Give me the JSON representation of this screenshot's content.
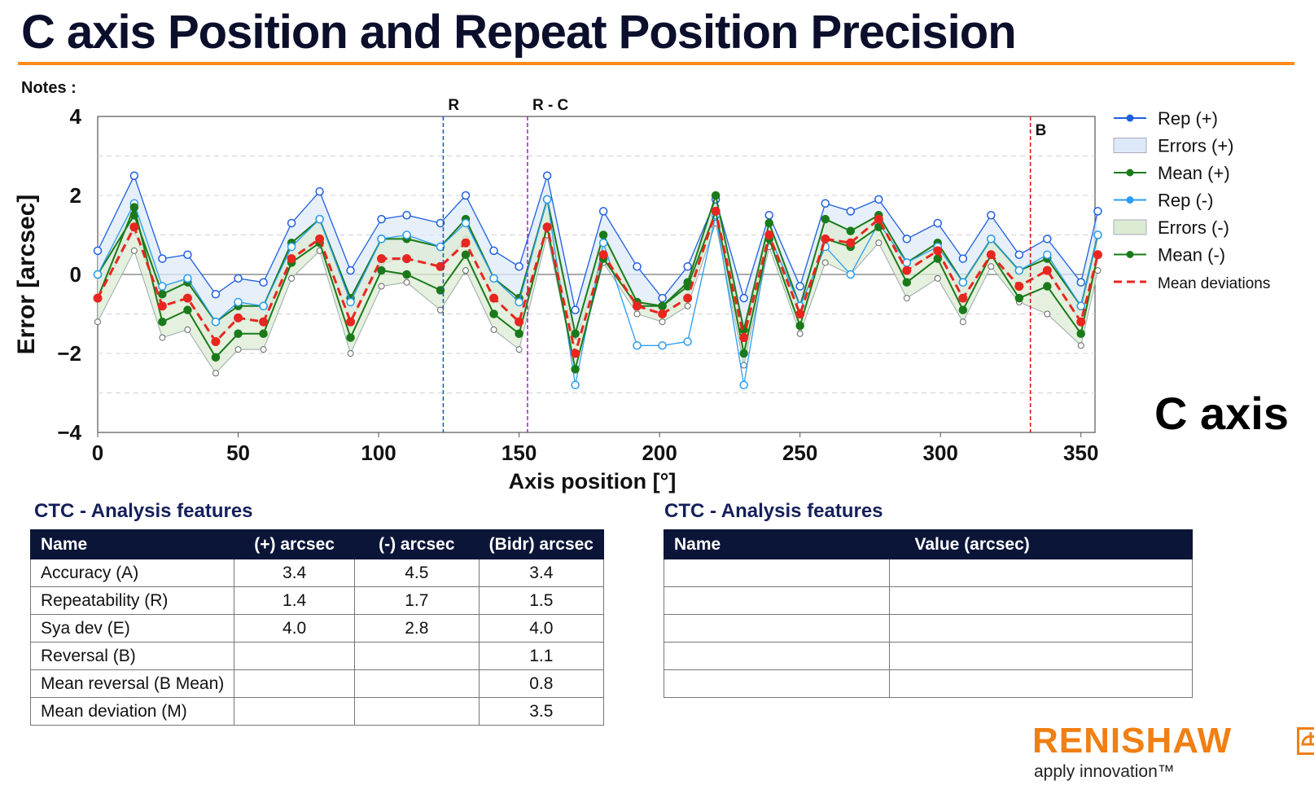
{
  "page": {
    "title": "C axis Position and Repeat Position Precision",
    "notes_label": "Notes :",
    "axis_caption": "C axis"
  },
  "colors": {
    "accent_rule": "#ff8a1c",
    "header_bg": "#0b1538",
    "brand_orange": "#f07f14",
    "rep_plus": "#1f5fe0",
    "rep_minus": "#2a9df4",
    "mean": "#1a7a1a",
    "errors_plus_fill": "#dde9f8",
    "errors_minus_fill": "#dcebd4",
    "mean_dev": "#e8261f"
  },
  "chart_data": {
    "type": "line",
    "xlabel": "Axis position [°]",
    "ylabel": "Error [arcsec]",
    "xlim": [
      0,
      355
    ],
    "ylim": [
      -4,
      4
    ],
    "xticks": [
      0,
      50,
      100,
      150,
      200,
      250,
      300,
      350
    ],
    "yticks": [
      4,
      2,
      0,
      -2,
      -4
    ],
    "grid": "horizontal dashed",
    "legend_position": "right",
    "x": [
      0,
      13,
      23,
      32,
      42,
      50,
      59,
      69,
      79,
      90,
      101,
      110,
      122,
      131,
      141,
      150,
      160,
      170,
      180,
      192,
      201,
      210,
      220,
      230,
      239,
      250,
      259,
      268,
      278,
      288,
      299,
      308,
      318,
      328,
      338,
      350,
      356
    ],
    "vertical_markers": [
      {
        "label": "R",
        "x": 123,
        "color": "#1f4fd0"
      },
      {
        "label": "R - C",
        "x": 153,
        "color": "#a020c0"
      },
      {
        "label": "B",
        "x": 332,
        "color": "#d81010"
      }
    ],
    "series": [
      {
        "name": "Rep (+)",
        "kind": "line",
        "color": "#1f5fe0",
        "values": [
          0.6,
          2.5,
          0.4,
          0.5,
          -0.5,
          -0.1,
          -0.2,
          1.3,
          2.1,
          0.1,
          1.4,
          1.5,
          1.3,
          2.0,
          0.6,
          0.2,
          2.5,
          -0.9,
          1.6,
          0.2,
          -0.6,
          0.2,
          1.9,
          -0.6,
          1.5,
          -0.3,
          1.8,
          1.6,
          1.9,
          0.9,
          1.3,
          0.4,
          1.5,
          0.5,
          0.9,
          -0.2,
          1.6
        ]
      },
      {
        "name": "Errors (+)",
        "kind": "band",
        "color": "#dde9f8",
        "upper": [
          0.6,
          2.5,
          0.4,
          0.5,
          -0.5,
          -0.1,
          -0.2,
          1.3,
          2.1,
          0.1,
          1.4,
          1.5,
          1.3,
          2.0,
          0.6,
          0.2,
          2.5,
          -0.9,
          1.6,
          0.2,
          -0.6,
          0.2,
          1.9,
          -0.6,
          1.5,
          -0.3,
          1.8,
          1.6,
          1.9,
          0.9,
          1.3,
          0.4,
          1.5,
          0.5,
          0.9,
          -0.2,
          1.6
        ],
        "lower": [
          -0.6,
          1.1,
          -0.8,
          -0.6,
          -1.7,
          -1.1,
          -1.2,
          0.4,
          0.9,
          -1.2,
          0.3,
          0.4,
          0.2,
          0.9,
          -0.6,
          -1.2,
          1.2,
          -1.7,
          0.5,
          -0.8,
          -1.0,
          -0.6,
          1.5,
          -1.6,
          1.0,
          -1.0,
          0.9,
          0.8,
          1.4,
          0.1,
          0.6,
          -0.6,
          0.5,
          -0.3,
          0.1,
          -1.2,
          0.5
        ]
      },
      {
        "name": "Mean (+)",
        "kind": "line",
        "color": "#1a7a1a",
        "values": [
          0.0,
          1.5,
          -0.5,
          -0.2,
          -1.2,
          -0.8,
          -0.8,
          0.8,
          1.4,
          -0.6,
          0.9,
          0.9,
          0.7,
          1.4,
          -0.1,
          -0.6,
          1.9,
          -1.5,
          1.0,
          -0.7,
          -0.8,
          -0.2,
          2.0,
          -1.4,
          1.3,
          -0.8,
          1.4,
          1.1,
          1.5,
          0.3,
          0.8,
          -0.2,
          0.9,
          0.1,
          0.4,
          -0.8,
          1.0
        ]
      },
      {
        "name": "Rep (-)",
        "kind": "line",
        "color": "#2a9df4",
        "values": [
          0.0,
          1.8,
          -0.3,
          -0.1,
          -1.2,
          -0.7,
          -0.8,
          0.7,
          1.4,
          -0.7,
          0.9,
          1.0,
          0.7,
          1.3,
          -0.1,
          -0.7,
          1.9,
          -2.8,
          0.8,
          -1.8,
          -1.8,
          -1.7,
          1.5,
          -2.8,
          1.0,
          -0.8,
          0.7,
          0.0,
          1.3,
          0.3,
          0.7,
          -0.2,
          0.9,
          0.1,
          0.5,
          -0.8,
          1.0
        ]
      },
      {
        "name": "Errors (-)",
        "kind": "band",
        "color": "#dcebd4",
        "upper": [
          0.0,
          1.8,
          -0.3,
          -0.1,
          -1.2,
          -0.7,
          -0.8,
          0.7,
          1.4,
          -0.7,
          0.9,
          1.0,
          0.7,
          1.3,
          -0.1,
          -0.7,
          1.9,
          -1.7,
          1.0,
          -0.6,
          -0.8,
          -0.2,
          2.0,
          -1.3,
          1.3,
          -0.8,
          1.4,
          1.1,
          1.5,
          0.3,
          0.8,
          -0.2,
          0.9,
          0.1,
          0.5,
          -0.8,
          1.0
        ],
        "lower": [
          -1.2,
          0.6,
          -1.6,
          -1.4,
          -2.5,
          -1.9,
          -1.9,
          -0.1,
          0.6,
          -2.0,
          -0.3,
          -0.2,
          -0.9,
          0.1,
          -1.4,
          -1.9,
          1.0,
          -2.4,
          0.3,
          -1.0,
          -1.2,
          -0.8,
          1.3,
          -2.3,
          0.7,
          -1.5,
          0.3,
          0.0,
          0.8,
          -0.6,
          -0.1,
          -1.2,
          0.2,
          -0.7,
          -1.0,
          -1.8,
          0.1
        ]
      },
      {
        "name": "Mean (-)",
        "kind": "line",
        "color": "#1a7a1a",
        "values": [
          -0.6,
          1.7,
          -1.2,
          -0.9,
          -2.1,
          -1.5,
          -1.5,
          0.3,
          0.8,
          -1.6,
          0.1,
          0.0,
          -0.4,
          0.5,
          -1.0,
          -1.5,
          1.2,
          -2.4,
          0.4,
          -0.8,
          -0.8,
          -0.3,
          1.6,
          -2.0,
          0.9,
          -1.3,
          0.9,
          0.7,
          1.2,
          -0.2,
          0.4,
          -0.9,
          0.5,
          -0.6,
          -0.3,
          -1.5,
          0.5
        ]
      },
      {
        "name": "Mean deviations",
        "kind": "dashed",
        "color": "#e8261f",
        "values": [
          -0.6,
          1.2,
          -0.8,
          -0.6,
          -1.7,
          -1.1,
          -1.2,
          0.4,
          0.9,
          -1.2,
          0.4,
          0.4,
          0.2,
          0.8,
          -0.6,
          -1.2,
          1.2,
          -2.0,
          0.5,
          -0.8,
          -1.0,
          -0.6,
          1.6,
          -1.6,
          1.0,
          -1.0,
          0.9,
          0.8,
          1.4,
          0.1,
          0.6,
          -0.6,
          0.5,
          -0.3,
          0.1,
          -1.2,
          0.5
        ]
      }
    ]
  },
  "tables": {
    "left": {
      "title": "CTC - Analysis features",
      "headers": [
        "Name",
        "(+) arcsec",
        "(-) arcsec",
        "(Bidr) arcsec"
      ],
      "rows": [
        [
          "Accuracy (A)",
          "3.4",
          "4.5",
          "3.4"
        ],
        [
          "Repeatability (R)",
          "1.4",
          "1.7",
          "1.5"
        ],
        [
          "Sya dev (E)",
          "4.0",
          "2.8",
          "4.0"
        ],
        [
          "Reversal (B)",
          "",
          "",
          "1.1"
        ],
        [
          "Mean reversal (B Mean)",
          "",
          "",
          "0.8"
        ],
        [
          "Mean deviation (M)",
          "",
          "",
          "3.5"
        ]
      ]
    },
    "right": {
      "title": "CTC - Analysis features",
      "headers": [
        "Name",
        "Value (arcsec)"
      ],
      "rows": [
        [
          "",
          ""
        ],
        [
          "",
          ""
        ],
        [
          "",
          ""
        ],
        [
          "",
          ""
        ],
        [
          "",
          ""
        ]
      ]
    }
  },
  "brand": {
    "name": "RENISHAW",
    "tagline": "apply innovation™"
  }
}
